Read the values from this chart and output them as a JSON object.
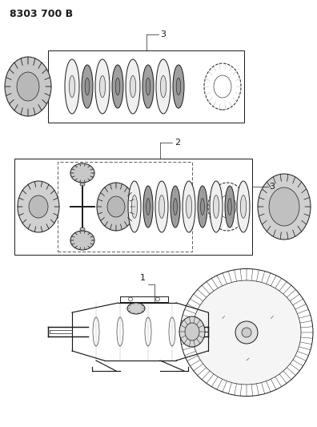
{
  "title": "8303 700 B",
  "background_color": "#ffffff",
  "line_color": "#1a1a1a",
  "title_fontsize": 9,
  "fig_width": 3.96,
  "fig_height": 5.33,
  "label1": "1",
  "label2": "2",
  "label3": "3"
}
